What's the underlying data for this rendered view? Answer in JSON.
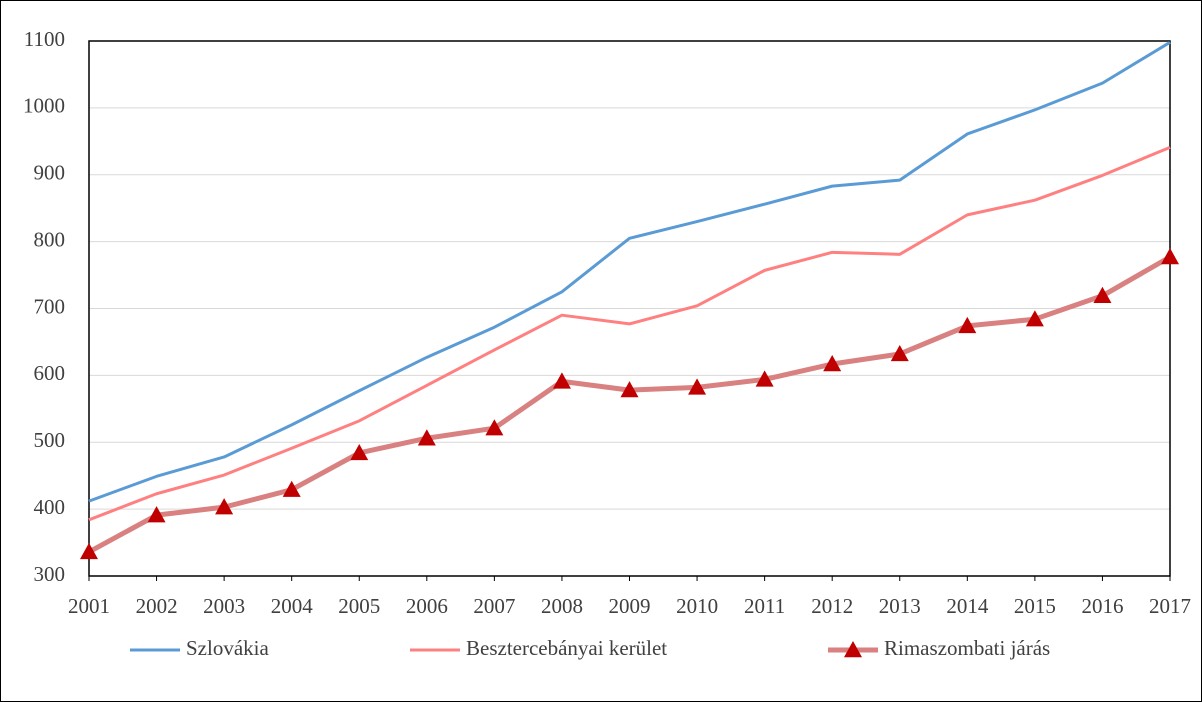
{
  "chart_data": {
    "type": "line",
    "x": [
      2001,
      2002,
      2003,
      2004,
      2005,
      2006,
      2007,
      2008,
      2009,
      2010,
      2011,
      2012,
      2013,
      2014,
      2015,
      2016,
      2017
    ],
    "xlim": [
      2001,
      2017
    ],
    "xticks": [
      2001,
      2002,
      2003,
      2004,
      2005,
      2006,
      2007,
      2008,
      2009,
      2010,
      2011,
      2012,
      2013,
      2014,
      2015,
      2016,
      2017
    ],
    "ylim": [
      300,
      1100
    ],
    "yticks": [
      300,
      400,
      500,
      600,
      700,
      800,
      900,
      1000,
      1100
    ],
    "grid": true,
    "legend": "bottom",
    "series": [
      {
        "name": "Szlovákia",
        "color": "#5b9bd5",
        "values": [
          412,
          449,
          478,
          526,
          577,
          627,
          672,
          725,
          805,
          830,
          856,
          883,
          892,
          961,
          997,
          1037,
          1098
        ]
      },
      {
        "name": "Besztercebányai kerület",
        "color": "#ff8080",
        "values": [
          384,
          423,
          451,
          491,
          532,
          585,
          638,
          690,
          677,
          704,
          757,
          784,
          781,
          840,
          862,
          899,
          941
        ]
      },
      {
        "name": "Rimaszombati járás",
        "color": "#d98080",
        "marker": "triangle",
        "marker_color": "#c00000",
        "values": [
          336,
          391,
          403,
          429,
          484,
          506,
          521,
          591,
          578,
          582,
          594,
          617,
          632,
          674,
          684,
          719,
          777
        ]
      }
    ]
  }
}
